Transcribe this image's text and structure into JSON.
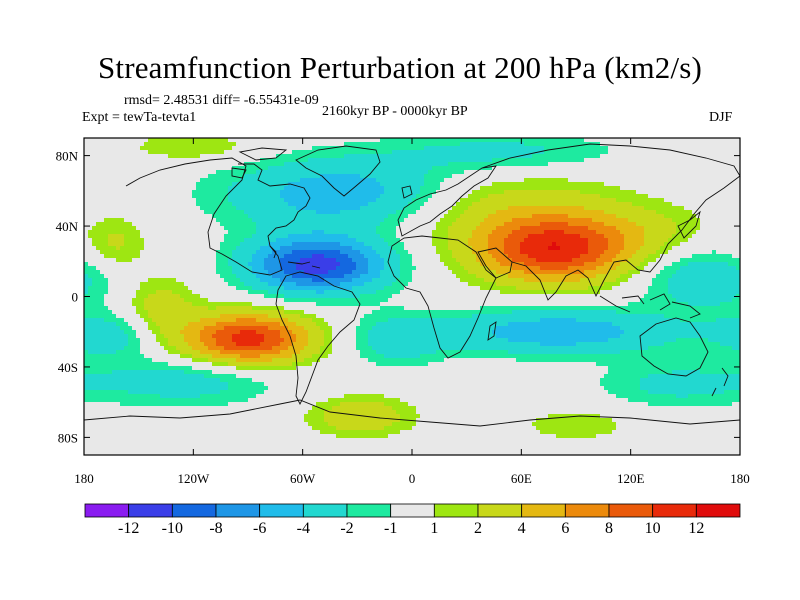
{
  "title": "Streamfunction Perturbation at 200 hPa (km2/s)",
  "stats_label": "rmsd= 2.48531 diff= -6.55431e-09",
  "experiment_label": "Expt = tewTa-tevta1",
  "period_label": "2160kyr BP - 0000kyr BP",
  "season_label": "DJF",
  "chart_data": {
    "type": "heatmap",
    "title": "Streamfunction Perturbation at 200 hPa (km2/s)",
    "units": "km2/s",
    "projection": "cylindrical-equidistant",
    "xlim": [
      -180,
      180
    ],
    "ylim": [
      -90,
      90
    ],
    "x_ticks": [
      {
        "value": -180,
        "label": "180"
      },
      {
        "value": -120,
        "label": "120W"
      },
      {
        "value": -60,
        "label": "60W"
      },
      {
        "value": 0,
        "label": "0"
      },
      {
        "value": 60,
        "label": "60E"
      },
      {
        "value": 120,
        "label": "120E"
      },
      {
        "value": 180,
        "label": "180"
      }
    ],
    "y_ticks": [
      {
        "value": 80,
        "label": "80N"
      },
      {
        "value": 40,
        "label": "40N"
      },
      {
        "value": 0,
        "label": "0"
      },
      {
        "value": -40,
        "label": "40S"
      },
      {
        "value": -80,
        "label": "80S"
      }
    ],
    "color_levels": [
      -12,
      -10,
      -8,
      -6,
      -4,
      -2,
      -1,
      1,
      2,
      4,
      6,
      8,
      10,
      12
    ],
    "colorbar_labels": [
      "-12",
      "-10",
      "-8",
      "-6",
      "-4",
      "-2",
      "-1",
      "1",
      "2",
      "4",
      "6",
      "8",
      "10",
      "12"
    ],
    "colorbar_colors": [
      "#8a1cf0",
      "#3a3ee8",
      "#1468e0",
      "#1e96e6",
      "#20bcea",
      "#22d8d0",
      "#1eeaa0",
      "#e8e8e8",
      "#9ee612",
      "#c8d81a",
      "#e4b812",
      "#ec8a0c",
      "#ea5a0a",
      "#e82a0a",
      "#e00c0c"
    ],
    "anomaly_centers": [
      {
        "lon": 78,
        "lat": 27,
        "amp": 11.5,
        "sx": 30,
        "sy": 13
      },
      {
        "lon": 40,
        "lat": 52,
        "amp": 3.2,
        "sx": 50,
        "sy": 14
      },
      {
        "lon": 130,
        "lat": 38,
        "amp": 1.6,
        "sx": 25,
        "sy": 10
      },
      {
        "lon": -163,
        "lat": 30,
        "amp": 2.4,
        "sx": 12,
        "sy": 11
      },
      {
        "lon": -138,
        "lat": -8,
        "amp": 3.0,
        "sx": 14,
        "sy": 14
      },
      {
        "lon": -90,
        "lat": -24,
        "amp": 11.0,
        "sx": 24,
        "sy": 10
      },
      {
        "lon": -28,
        "lat": -68,
        "amp": 3.5,
        "sx": 20,
        "sy": 8
      },
      {
        "lon": 90,
        "lat": -73,
        "amp": 2.0,
        "sx": 20,
        "sy": 6
      },
      {
        "lon": -120,
        "lat": 85,
        "amp": 2.0,
        "sx": 25,
        "sy": 6
      },
      {
        "lon": -52,
        "lat": 18,
        "amp": -11.0,
        "sx": 26,
        "sy": 11
      },
      {
        "lon": -35,
        "lat": 58,
        "amp": -6.0,
        "sx": 45,
        "sy": 14
      },
      {
        "lon": 50,
        "lat": 82,
        "amp": -2.5,
        "sx": 45,
        "sy": 8
      },
      {
        "lon": 160,
        "lat": 10,
        "amp": -3.5,
        "sx": 25,
        "sy": 12
      },
      {
        "lon": 80,
        "lat": -20,
        "amp": -5.5,
        "sx": 45,
        "sy": 9
      },
      {
        "lon": -165,
        "lat": -22,
        "amp": -3.0,
        "sx": 22,
        "sy": 9
      },
      {
        "lon": -125,
        "lat": -48,
        "amp": -3.0,
        "sx": 35,
        "sy": 10
      },
      {
        "lon": 145,
        "lat": -50,
        "amp": -2.5,
        "sx": 30,
        "sy": 9
      },
      {
        "lon": -8,
        "lat": -25,
        "amp": -3.0,
        "sx": 18,
        "sy": 10
      }
    ]
  }
}
